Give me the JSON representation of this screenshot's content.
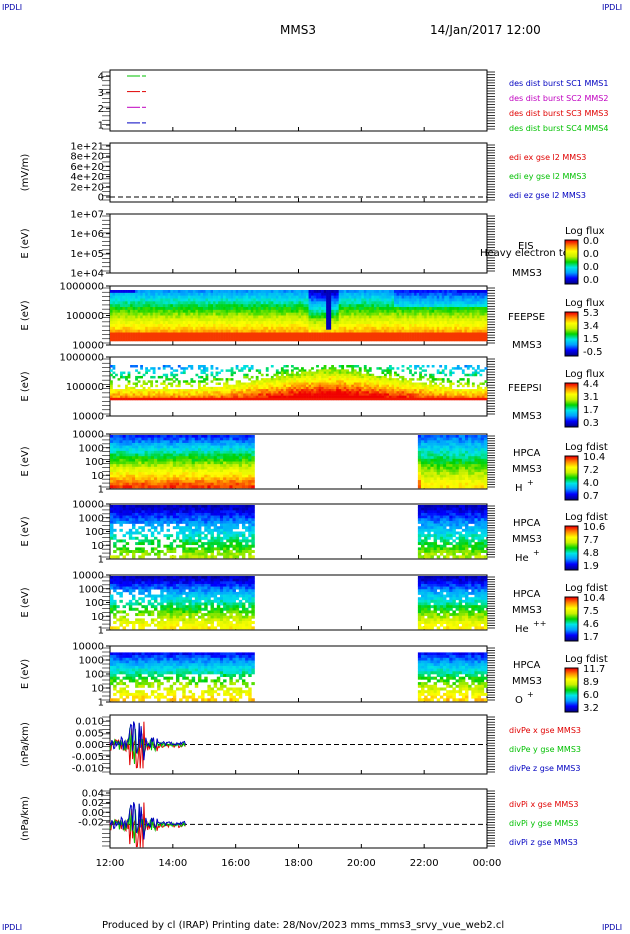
{
  "corners": {
    "tl": "IPDLI",
    "tr": "IPDLI",
    "bl": "IPDLI",
    "br": "IPDLI"
  },
  "header": {
    "title": "MMS3",
    "date": "14/Jan/2017 12:00"
  },
  "footer": {
    "text": "Produced by cl (IRAP)   Printing date: 28/Nov/2023   mms_mms3_srvy_vue_web2.cl"
  },
  "x_ticks": [
    "12:00",
    "14:00",
    "16:00",
    "18:00",
    "20:00",
    "22:00",
    "00:00"
  ],
  "colors": {
    "c1": "#00c000",
    "c2": "#e00000",
    "c3": "#c000c0",
    "c4": "#0000c0"
  },
  "chart_data": [
    {
      "type": "line",
      "panel": "burst",
      "y_ticks": [
        "4",
        "3",
        "2",
        "1"
      ],
      "ylim": [
        0.5,
        4.5
      ],
      "series": [
        {
          "name": "des dist burst SC1 MMS1",
          "y": 4,
          "color": "#0000c0"
        },
        {
          "name": "des dist burst SC2 MMS2",
          "y": 3,
          "color": "#c000c0"
        },
        {
          "name": "des dist burst SC3 MMS3",
          "y": 2,
          "color": "#e00000"
        },
        {
          "name": "des dist burst SC4 MMS4",
          "y": 1,
          "color": "#00c000"
        }
      ],
      "legend": [
        "des dist burst SC1 MMS1",
        "des dist burst SC2 MMS2",
        "des dist burst SC3 MMS3",
        "des dist burst SC4 MMS4"
      ]
    },
    {
      "type": "line",
      "panel": "edi",
      "ylabel": "(mV/m)",
      "y_ticks": [
        "1e+21",
        "8e+20",
        "6e+20",
        "4e+20",
        "2e+20",
        "0"
      ],
      "legend": [
        "edi ex gse l2 MMS3",
        "edi ey gse l2 MMS3",
        "edi ez gse l2 MMS3"
      ]
    },
    {
      "type": "heatmap",
      "panel": "eis",
      "ylabel": "E (eV)",
      "y_ticks": [
        "1e+07",
        "1e+06",
        "1e+05",
        "1e+04"
      ],
      "instrument": "EIS",
      "overlay": "Heavy electron tc",
      "sc": "MMS3",
      "cbar_title": "Log flux",
      "cbar_ticks": [
        "0.0",
        "0.0",
        "0.0",
        "0.0"
      ]
    },
    {
      "type": "heatmap",
      "panel": "feepse",
      "ylabel": "E (eV)",
      "y_ticks": [
        "1000000",
        "100000",
        "10000"
      ],
      "instrument": "FEEPSE",
      "sc": "MMS3",
      "cbar_title": "Log flux",
      "cbar_ticks": [
        "5.3",
        "3.4",
        "1.5",
        "-0.5"
      ]
    },
    {
      "type": "heatmap",
      "panel": "feepsi",
      "ylabel": "E (eV)",
      "y_ticks": [
        "1000000",
        "100000",
        "10000"
      ],
      "instrument": "FEEPSI",
      "sc": "MMS3",
      "cbar_title": "Log flux",
      "cbar_ticks": [
        "4.4",
        "3.1",
        "1.7",
        "0.3"
      ]
    },
    {
      "type": "heatmap",
      "panel": "hpca_h",
      "ylabel": "E (eV)",
      "y_ticks": [
        "10000",
        "1000",
        "100",
        "10",
        "1"
      ],
      "instrument": "HPCA",
      "sc": "MMS3",
      "species": "H",
      "charge": "+",
      "cbar_title": "Log fdist",
      "cbar_ticks": [
        "10.4",
        "7.2",
        "4.0",
        "0.7"
      ]
    },
    {
      "type": "heatmap",
      "panel": "hpca_he",
      "ylabel": "E (eV)",
      "y_ticks": [
        "10000",
        "1000",
        "100",
        "10",
        "1"
      ],
      "instrument": "HPCA",
      "sc": "MMS3",
      "species": "He",
      "charge": "+",
      "cbar_title": "Log fdist",
      "cbar_ticks": [
        "10.6",
        "7.7",
        "4.8",
        "1.9"
      ]
    },
    {
      "type": "heatmap",
      "panel": "hpca_hepp",
      "ylabel": "E (eV)",
      "y_ticks": [
        "10000",
        "1000",
        "100",
        "10",
        "1"
      ],
      "instrument": "HPCA",
      "sc": "MMS3",
      "species": "He",
      "charge": "++",
      "cbar_title": "Log fdist",
      "cbar_ticks": [
        "10.4",
        "7.5",
        "4.6",
        "1.7"
      ]
    },
    {
      "type": "heatmap",
      "panel": "hpca_o",
      "ylabel": "E (eV)",
      "y_ticks": [
        "10000",
        "1000",
        "100",
        "10",
        "1"
      ],
      "instrument": "HPCA",
      "sc": "MMS3",
      "species": "O",
      "charge": "+",
      "cbar_title": "Log fdist",
      "cbar_ticks": [
        "11.7",
        "8.9",
        "6.0",
        "3.2"
      ]
    },
    {
      "type": "line",
      "panel": "divpe",
      "ylabel": "(nPa/km)",
      "y_ticks": [
        "0.010",
        "0.005",
        "0.000",
        "-0.005",
        "-0.010"
      ],
      "ylim": [
        -0.012,
        0.012
      ],
      "legend": [
        "divPe x gse MMS3",
        "divPe y gse MMS3",
        "divPe z gse MMS3"
      ]
    },
    {
      "type": "line",
      "panel": "divpi",
      "ylabel": "(nPa/km)",
      "y_ticks": [
        "0.04",
        "0.02",
        "0.00",
        "-0.02"
      ],
      "ylim": [
        -0.03,
        0.045
      ],
      "legend": [
        "divPi x gse MMS3",
        "divPi y gse MMS3",
        "divPi z gse MMS3"
      ]
    }
  ]
}
